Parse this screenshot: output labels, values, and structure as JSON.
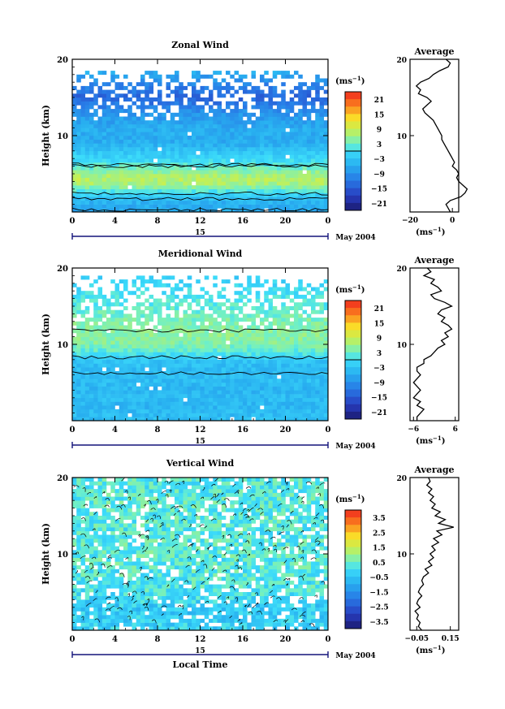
{
  "chart_data": [
    {
      "type": "heatmap",
      "title": "Zonal Wind",
      "ylabel": "Height (km)",
      "xlabel": "",
      "ylim": [
        0,
        20
      ],
      "yticks": [
        "20",
        "10"
      ],
      "xlim": [
        0,
        24
      ],
      "xticks": [
        "0",
        "4",
        "8",
        "12",
        "16",
        "20",
        "0"
      ],
      "date_marker": "15",
      "date_label": "May 2004",
      "colorbar": {
        "unit_label": "(ms",
        "unit_exp": "−1",
        "tick_labels": [
          "21",
          "15",
          "9",
          "3",
          "−3",
          "−9",
          "−15",
          "−21"
        ],
        "range": [
          -24,
          24
        ],
        "zero_line": true
      },
      "profile_rows": [
        {
          "h": 19,
          "v": -4
        },
        {
          "h": 17,
          "v": -10
        },
        {
          "h": 15,
          "v": -14
        },
        {
          "h": 13,
          "v": -9
        },
        {
          "h": 11,
          "v": -6
        },
        {
          "h": 9,
          "v": -6
        },
        {
          "h": 8,
          "v": -3
        },
        {
          "h": 7,
          "v": -1
        },
        {
          "h": 6,
          "v": 2
        },
        {
          "h": 5,
          "v": 6
        },
        {
          "h": 4,
          "v": 8
        },
        {
          "h": 3,
          "v": 3
        },
        {
          "h": 2,
          "v": -3
        },
        {
          "h": 1,
          "v": -6
        }
      ],
      "top_gap_km": 1.5,
      "contour_heights": [
        6.2,
        6.0,
        2.4,
        1.7,
        0.3
      ],
      "profile": {
        "title": "Average",
        "xlim": [
          -20,
          3
        ],
        "xticks": [
          "−20",
          "0"
        ],
        "xtick_values": [
          -20,
          0
        ],
        "xlabel": "(ms",
        "xlabel_exp": "−1",
        "yticks": [
          "20",
          "10"
        ],
        "h": [
          20,
          19.5,
          19,
          18.5,
          18,
          17.5,
          17,
          16.5,
          16,
          15.5,
          15,
          14.5,
          14,
          13.5,
          13,
          12.5,
          12,
          11.5,
          11,
          10.5,
          10,
          9.5,
          9,
          8.5,
          8,
          7.5,
          7,
          6.5,
          6,
          5.5,
          5,
          4.5,
          4,
          3.5,
          3,
          2.5,
          2,
          1.5,
          1,
          0.5,
          0
        ],
        "v": [
          -3,
          -1,
          -2,
          -6,
          -9,
          -11,
          -15,
          -17,
          -15,
          -16,
          -12,
          -10,
          -12,
          -14,
          -13,
          -11,
          -9,
          -8,
          -7,
          -6,
          -5,
          -5,
          -4,
          -3,
          -2,
          -1,
          0,
          1,
          0,
          2,
          3,
          2,
          3,
          5,
          7,
          6,
          4,
          -1,
          -3,
          -2,
          -1
        ]
      }
    },
    {
      "type": "heatmap",
      "title": "Meridional Wind",
      "ylabel": "Height (km)",
      "xlabel": "",
      "ylim": [
        0,
        20
      ],
      "yticks": [
        "20",
        "10"
      ],
      "xlim": [
        0,
        24
      ],
      "xticks": [
        "0",
        "4",
        "8",
        "12",
        "16",
        "20",
        "0"
      ],
      "date_marker": "15",
      "date_label": "May 2004",
      "colorbar": {
        "unit_label": "(ms",
        "unit_exp": "−1",
        "tick_labels": [
          "21",
          "15",
          "9",
          "3",
          "−3",
          "−9",
          "−15",
          "−21"
        ],
        "range": [
          -24,
          24
        ],
        "zero_line": true
      },
      "profile_rows": [
        {
          "h": 19,
          "v": -2
        },
        {
          "h": 17,
          "v": 0
        },
        {
          "h": 15,
          "v": 2
        },
        {
          "h": 13,
          "v": 4
        },
        {
          "h": 11,
          "v": 5
        },
        {
          "h": 10,
          "v": 4
        },
        {
          "h": 9,
          "v": 2
        },
        {
          "h": 8,
          "v": -3
        },
        {
          "h": 7,
          "v": -4
        },
        {
          "h": 6,
          "v": -4
        },
        {
          "h": 5,
          "v": -4
        },
        {
          "h": 4,
          "v": -5
        },
        {
          "h": 3,
          "v": -4
        },
        {
          "h": 2,
          "v": -5
        },
        {
          "h": 1,
          "v": -4
        }
      ],
      "top_gap_km": 1,
      "contour_heights": [
        11.8,
        8.3,
        6.2
      ],
      "profile": {
        "title": "Average",
        "xlim": [
          -7,
          7
        ],
        "xticks": [
          "−6",
          "6"
        ],
        "xtick_values": [
          -6,
          6
        ],
        "xlabel": "(ms",
        "xlabel_exp": "−1",
        "yticks": [
          "20",
          "10"
        ],
        "h": [
          20,
          19.5,
          19,
          18.5,
          18,
          17.5,
          17,
          16.5,
          16,
          15.5,
          15,
          14.5,
          14,
          13.5,
          13,
          12.5,
          12,
          11.5,
          11,
          10.5,
          10,
          9.5,
          9,
          8.5,
          8,
          7.5,
          7,
          6.5,
          6,
          5.5,
          5,
          4.5,
          4,
          3.5,
          3,
          2.5,
          2,
          1.5,
          1,
          0.5,
          0
        ],
        "v": [
          -2,
          -1,
          -3,
          0,
          -1,
          1,
          2,
          -1,
          0,
          3,
          5,
          2,
          1,
          3,
          2,
          4,
          5,
          3,
          4,
          2,
          3,
          1,
          0,
          -1,
          -3,
          -3,
          -5,
          -5,
          -4,
          -5,
          -6,
          -5,
          -4,
          -5,
          -6,
          -4,
          -5,
          -3,
          -4,
          -5,
          -5
        ]
      }
    },
    {
      "type": "heatmap",
      "title": "Vertical Wind",
      "ylabel": "Height (km)",
      "xlabel": "Local Time",
      "ylim": [
        0,
        20
      ],
      "yticks": [
        "20",
        "10"
      ],
      "xlim": [
        0,
        24
      ],
      "xticks": [
        "0",
        "4",
        "8",
        "12",
        "16",
        "20",
        "0"
      ],
      "date_marker": "15",
      "date_label": "May 2004",
      "colorbar": {
        "unit_label": "(ms",
        "unit_exp": "−1",
        "tick_labels": [
          "3.5",
          "2.5",
          "1.5",
          "0.5",
          "−0.5",
          "−1.5",
          "−2.5",
          "−3.5"
        ],
        "range": [
          -4,
          4
        ],
        "zero_line": false
      },
      "profile_rows": [
        {
          "h": 19,
          "v": 0.2
        },
        {
          "h": 17,
          "v": 0.3
        },
        {
          "h": 15,
          "v": 0.25
        },
        {
          "h": 13,
          "v": 0.2
        },
        {
          "h": 11,
          "v": 0.3
        },
        {
          "h": 9,
          "v": 0.3
        },
        {
          "h": 7,
          "v": 0.2
        },
        {
          "h": 5,
          "v": 0.1
        },
        {
          "h": 3,
          "v": -0.4
        },
        {
          "h": 1,
          "v": -0.3
        }
      ],
      "top_gap_km": 0,
      "contour_heights": [],
      "profile": {
        "title": "Average",
        "xlim": [
          -0.09,
          0.2
        ],
        "xticks": [
          "−0.05",
          "0.15"
        ],
        "xtick_values": [
          -0.05,
          0.15
        ],
        "xlabel": "(ms",
        "xlabel_exp": "−1",
        "yticks": [
          "20",
          "10"
        ],
        "h": [
          20,
          19.5,
          19,
          18.5,
          18,
          17.5,
          17,
          16.5,
          16,
          15.5,
          15,
          14.5,
          14,
          13.5,
          13,
          12.5,
          12,
          11.5,
          11,
          10.5,
          10,
          9.5,
          9,
          8.5,
          8,
          7.5,
          7,
          6.5,
          6,
          5.5,
          5,
          4.5,
          4,
          3.5,
          3,
          2.5,
          2,
          1.5,
          1,
          0.5,
          0
        ],
        "v": [
          0.02,
          0.03,
          0.01,
          0.04,
          0.02,
          0.05,
          0.03,
          0.06,
          0.04,
          0.09,
          0.06,
          0.12,
          0.08,
          0.17,
          0.07,
          0.1,
          0.05,
          0.08,
          0.04,
          0.06,
          0.03,
          0.05,
          0.02,
          0.04,
          0.0,
          0.02,
          -0.01,
          -0.02,
          -0.01,
          -0.03,
          -0.04,
          -0.02,
          -0.04,
          -0.05,
          -0.03,
          -0.06,
          -0.04,
          -0.05,
          -0.03,
          -0.04,
          -0.02
        ]
      }
    }
  ]
}
